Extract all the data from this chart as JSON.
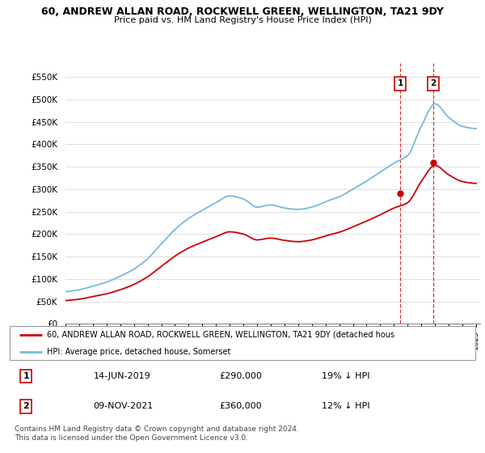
{
  "title1": "60, ANDREW ALLAN ROAD, ROCKWELL GREEN, WELLINGTON, TA21 9DY",
  "title2": "Price paid vs. HM Land Registry's House Price Index (HPI)",
  "ylabel_ticks": [
    "£0",
    "£50K",
    "£100K",
    "£150K",
    "£200K",
    "£250K",
    "£300K",
    "£350K",
    "£400K",
    "£450K",
    "£500K",
    "£550K"
  ],
  "ytick_vals": [
    0,
    50000,
    100000,
    150000,
    200000,
    250000,
    300000,
    350000,
    400000,
    450000,
    500000,
    550000
  ],
  "ylim": [
    0,
    580000
  ],
  "hpi_color": "#7ab8d9",
  "price_color": "#cc0000",
  "legend_label1": "60, ANDREW ALLAN ROAD, ROCKWELL GREEN, WELLINGTON, TA21 9DY (detached hous",
  "legend_label2": "HPI: Average price, detached house, Somerset",
  "sale1_date": "14-JUN-2019",
  "sale1_price": "£290,000",
  "sale1_hpi": "19% ↓ HPI",
  "sale2_date": "09-NOV-2021",
  "sale2_price": "£360,000",
  "sale2_hpi": "12% ↓ HPI",
  "footnote": "Contains HM Land Registry data © Crown copyright and database right 2024.\nThis data is licensed under the Open Government Licence v3.0.",
  "sale1_year": 2019.45,
  "sale2_year": 2021.86,
  "sale1_value": 290000,
  "sale2_value": 360000,
  "hpi_points_x": [
    1995,
    1996,
    1997,
    1998,
    1999,
    2000,
    2001,
    2002,
    2003,
    2004,
    2005,
    2006,
    2007,
    2008,
    2009,
    2010,
    2011,
    2012,
    2013,
    2014,
    2015,
    2016,
    2017,
    2018,
    2019,
    2020,
    2021,
    2022,
    2023,
    2024,
    2025
  ],
  "hpi_points_y": [
    72000,
    76000,
    84000,
    93000,
    106000,
    122000,
    145000,
    178000,
    210000,
    235000,
    253000,
    270000,
    285000,
    278000,
    260000,
    265000,
    258000,
    255000,
    260000,
    272000,
    283000,
    300000,
    318000,
    338000,
    358000,
    375000,
    440000,
    490000,
    460000,
    440000,
    435000
  ],
  "price_points_x": [
    1995,
    1996,
    1997,
    1998,
    1999,
    2000,
    2001,
    2002,
    2003,
    2004,
    2005,
    2006,
    2007,
    2008,
    2009,
    2010,
    2011,
    2012,
    2013,
    2014,
    2015,
    2016,
    2017,
    2018,
    2019,
    2020,
    2021,
    2022,
    2023,
    2024,
    2025
  ],
  "price_points_y": [
    52000,
    55000,
    61000,
    67000,
    76000,
    88000,
    105000,
    128000,
    151000,
    169000,
    182000,
    194000,
    205000,
    200000,
    187000,
    191000,
    186000,
    183000,
    187000,
    196000,
    204000,
    216000,
    229000,
    243000,
    258000,
    270000,
    317000,
    353000,
    332000,
    317000,
    313000
  ]
}
